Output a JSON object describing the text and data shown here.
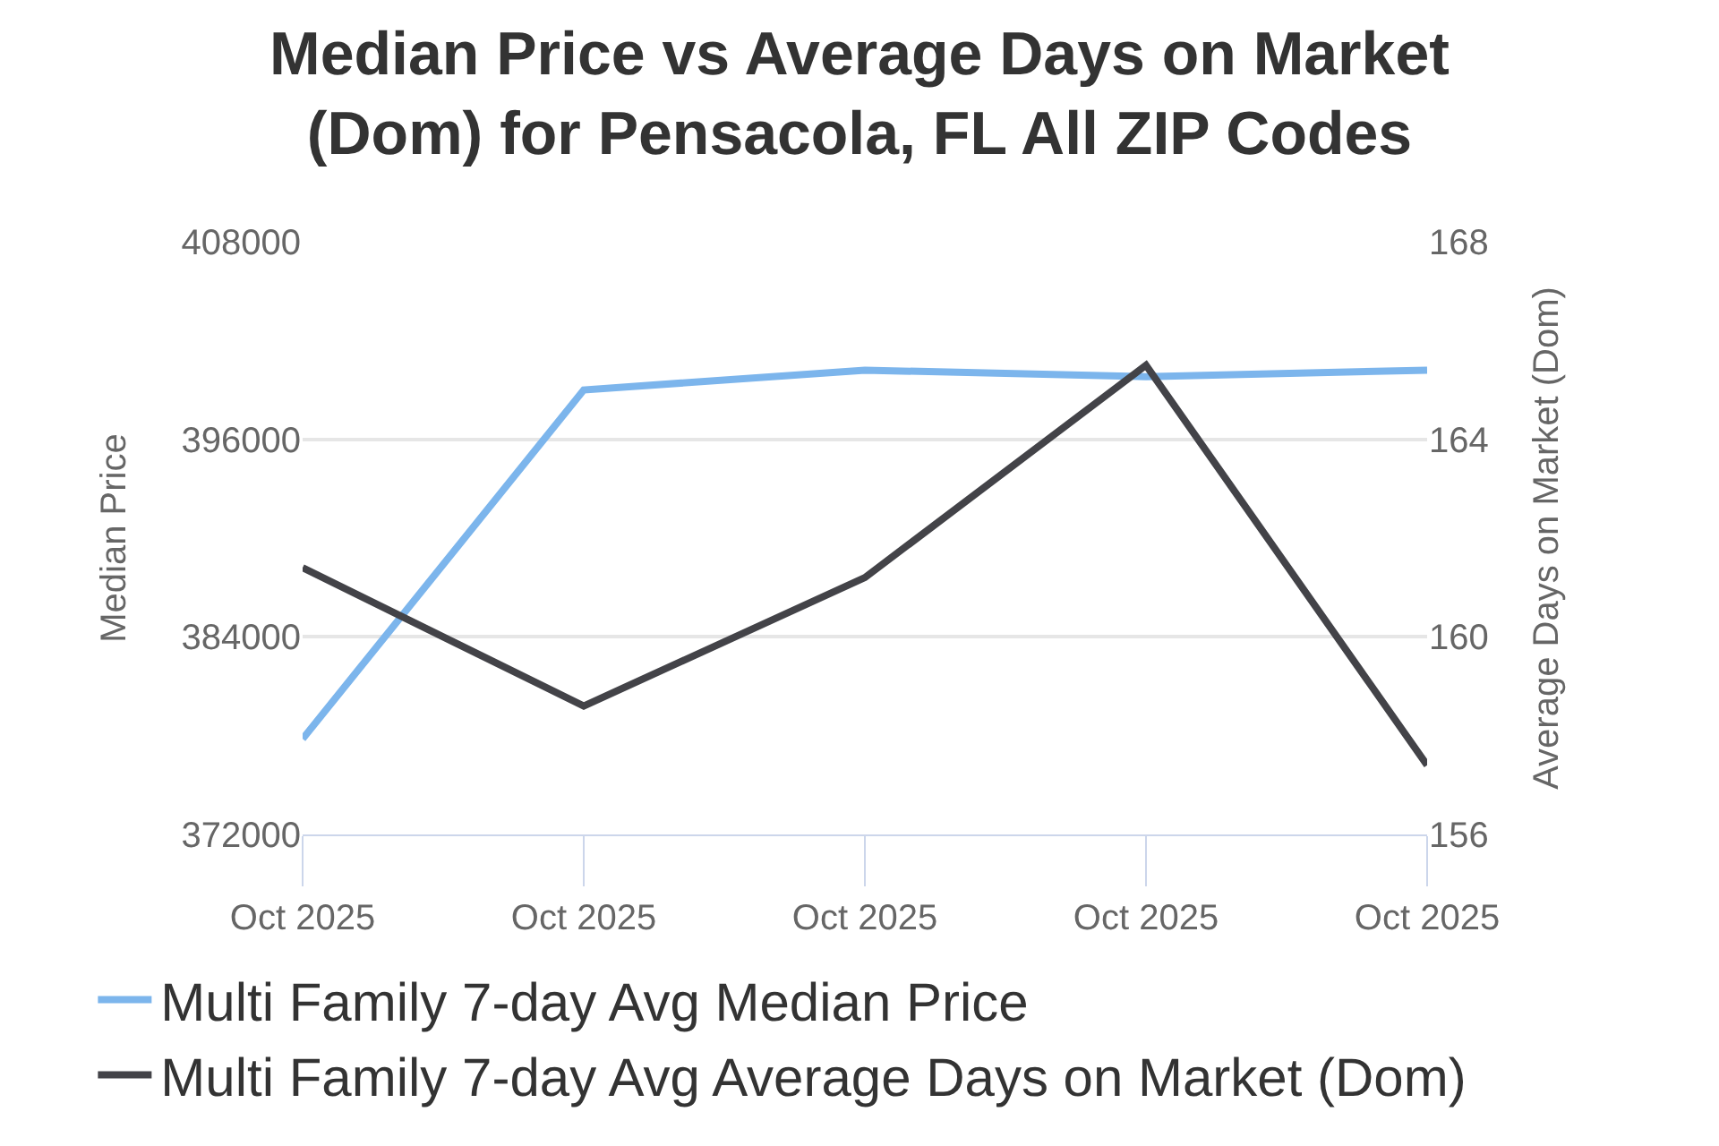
{
  "chart_data": {
    "type": "line",
    "title": "Median Price vs Average Days on Market\n(Dom) for Pensacola, FL All ZIP Codes",
    "ylabel": "Median Price",
    "y2label": "Average Days on Market (Dom)",
    "categories": [
      "Oct 2025",
      "Oct 2025",
      "Oct 2025",
      "Oct 2025",
      "Oct 2025"
    ],
    "series": [
      {
        "name": "Multi Family 7-day Avg Median Price",
        "color": "#7cb5ec",
        "values": [
          377800,
          399000,
          400200,
          399800,
          400200
        ]
      },
      {
        "name": "Multi Family 7-day Avg Average Days on Market (Dom)",
        "color": "#434348",
        "axis": "y2",
        "values": [
          161.4,
          158.6,
          161.2,
          165.5,
          157.4
        ]
      }
    ],
    "ylim": [
      372000,
      408000
    ],
    "yticks": [
      372000,
      384000,
      396000,
      408000
    ],
    "y2lim": [
      156,
      168
    ],
    "y2ticks": [
      156,
      160,
      164,
      168
    ],
    "grid": "y",
    "legend": "bottom",
    "marker": "none",
    "line_style": "solid"
  }
}
